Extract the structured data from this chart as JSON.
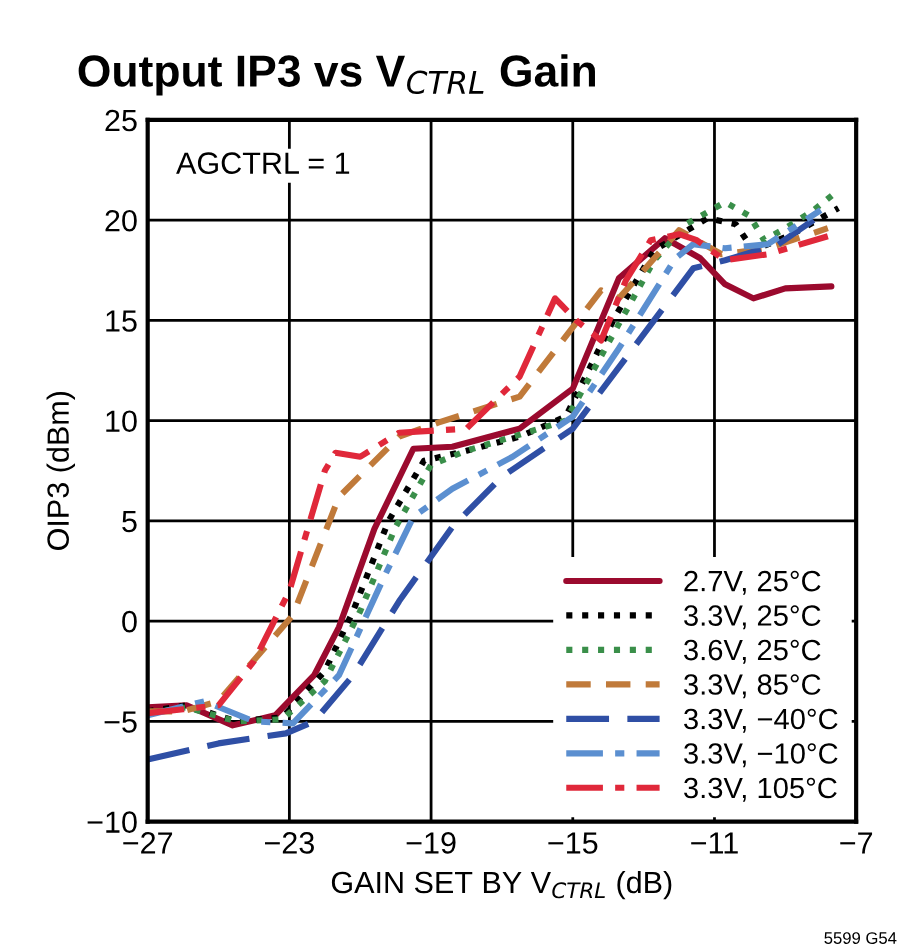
{
  "chart_data": {
    "type": "line",
    "title": "Output IP3 vs V$_{CTRL}$ Gain",
    "xlabel": "GAIN SET BY V$_{CTRL}$ (dB)",
    "ylabel": "OIP3 (dBm)",
    "annotations": [
      "AGCTRL = 1",
      "5599 G54"
    ],
    "xlim": [
      -27,
      -7
    ],
    "xticks": [
      -27,
      -23,
      -19,
      -15,
      -11,
      -7
    ],
    "ylim": [
      -10,
      25
    ],
    "yticks": [
      -10,
      -5,
      0,
      5,
      10,
      15,
      20,
      25
    ],
    "grid": true,
    "legend": "bottom right",
    "series": [
      {
        "name": "2.7V, 25°C",
        "color": "#9b0a2e",
        "line_style": "solid",
        "x": [
          -27,
          -25.9,
          -24.6,
          -23.4,
          -22.3,
          -21.6,
          -20.6,
          -19.5,
          -18.4,
          -16.5,
          -15,
          -13.7,
          -12.4,
          -11.4,
          -10.7,
          -9.9,
          -9,
          -7.7
        ],
        "values": [
          -4.3,
          -4.2,
          -5.2,
          -4.7,
          -2.7,
          -0.3,
          4.6,
          8.6,
          8.7,
          9.6,
          11.6,
          17.1,
          19.1,
          18.1,
          16.8,
          16.1,
          16.6,
          16.7
        ]
      },
      {
        "name": "3.3V, 25°C",
        "color": "#000000",
        "line_style": "dotted",
        "x": [
          -27,
          -25.9,
          -24.5,
          -23.2,
          -22,
          -21.2,
          -20.2,
          -19.2,
          -18,
          -16.5,
          -15.2,
          -13.8,
          -12.7,
          -11.2,
          -10.4,
          -9.9,
          -8.8,
          -7.5
        ],
        "values": [
          -4.5,
          -4.2,
          -5,
          -4.8,
          -2.5,
          0.5,
          5,
          8,
          8.5,
          9.2,
          10.2,
          15.2,
          18.5,
          20.1,
          19.8,
          18.5,
          19.3,
          20.6
        ]
      },
      {
        "name": "3.6V, 25°C",
        "color": "#3a8f4a",
        "line_style": "dotted",
        "x": [
          -27,
          -25.9,
          -24.5,
          -23.2,
          -22,
          -21,
          -20,
          -19,
          -18,
          -16.5,
          -15.2,
          -13.8,
          -12.7,
          -11.8,
          -10.7,
          -10,
          -9.6,
          -9,
          -8.2,
          -7.5
        ],
        "values": [
          -4.6,
          -4.3,
          -5,
          -4.9,
          -3,
          0.5,
          4.7,
          7.8,
          8.5,
          9.3,
          10,
          14.5,
          18,
          19.8,
          20.9,
          20.2,
          19,
          19.6,
          20.5,
          21.5
        ]
      },
      {
        "name": "3.3V, 85°C",
        "color": "#c07a3a",
        "line_style": "dashed",
        "x": [
          -27,
          -26,
          -25,
          -22.9,
          -21.6,
          -19.9,
          -18.8,
          -16.5,
          -14.2,
          -13.7,
          -12.7,
          -12,
          -10.8,
          -9.5,
          -7.8
        ],
        "values": [
          -4.5,
          -4.5,
          -4,
          0.3,
          6.2,
          9.2,
          9.9,
          11.2,
          16.5,
          16.1,
          18.1,
          19.5,
          18.3,
          18.6,
          19.6
        ]
      },
      {
        "name": "3.3V, −40°C",
        "color": "#2f4fa5",
        "line_style": "long_dashed",
        "x": [
          -27,
          -25,
          -23.1,
          -22.3,
          -21.2,
          -19.9,
          -18.4,
          -17,
          -15,
          -13.3,
          -11.6,
          -10.7,
          -9.2,
          -7.8
        ],
        "values": [
          -6.9,
          -6.1,
          -5.6,
          -5,
          -2.7,
          1,
          4.7,
          7.2,
          9.6,
          13.6,
          17.6,
          18,
          18.8,
          20.5
        ]
      },
      {
        "name": "3.3V, −10°C",
        "color": "#5b8fd0",
        "line_style": "dashdot",
        "x": [
          -27,
          -25.4,
          -24,
          -22.9,
          -21.6,
          -20.3,
          -19.5,
          -18.4,
          -16.7,
          -15,
          -13.7,
          -12.1,
          -11.6,
          -10.7,
          -9.5,
          -8
        ],
        "values": [
          -4.7,
          -4,
          -5,
          -5.1,
          -2.7,
          2.3,
          5.2,
          6.6,
          8.2,
          10.2,
          13.6,
          18.1,
          18.8,
          18.6,
          18.8,
          20.5
        ]
      },
      {
        "name": "3.3V, 105°C",
        "color": "#e0283a",
        "line_style": "dashdot",
        "x": [
          -27,
          -26,
          -25,
          -24,
          -23,
          -22.5,
          -22,
          -21.7,
          -21,
          -19.9,
          -18,
          -16.5,
          -15.5,
          -14.9,
          -14.2,
          -13.5,
          -12.8,
          -12,
          -11.5,
          -10.7,
          -9.5,
          -7.8
        ],
        "values": [
          -4.6,
          -4.4,
          -4.2,
          -2,
          1.5,
          4.5,
          7.5,
          8.4,
          8.2,
          9.4,
          9.6,
          12.2,
          16.1,
          15,
          14,
          17,
          19,
          19.3,
          19,
          18,
          18.3,
          19.2
        ]
      }
    ]
  }
}
